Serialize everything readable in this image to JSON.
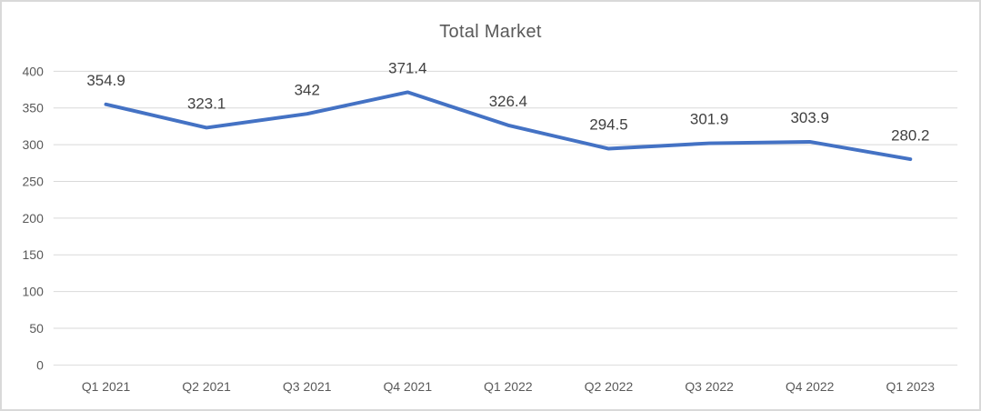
{
  "window": {
    "background_color": "#FFFFFF",
    "border_color": "#D9D9D9"
  },
  "chart_data": {
    "type": "line",
    "title": "Total Market",
    "xlabel": "",
    "ylabel": "",
    "categories": [
      "Q1 2021",
      "Q2 2021",
      "Q3 2021",
      "Q4 2021",
      "Q1 2022",
      "Q2 2022",
      "Q3 2022",
      "Q4 2022",
      "Q1 2023"
    ],
    "series": [
      {
        "name": "Total Market",
        "values": [
          354.9,
          323.1,
          342,
          371.4,
          326.4,
          294.5,
          301.9,
          303.9,
          280.2
        ],
        "labels": [
          "354.9",
          "323.1",
          "342",
          "371.4",
          "326.4",
          "294.5",
          "301.9",
          "303.9",
          "280.2"
        ],
        "color": "#4472C4"
      }
    ],
    "ylim": [
      0,
      400
    ],
    "yticks": [
      0,
      50,
      100,
      150,
      200,
      250,
      300,
      350,
      400
    ],
    "grid": true,
    "legend": "none",
    "data_labels": "above",
    "style": {
      "gridline_color": "#D9D9D9",
      "axis_label_color": "#595959",
      "data_label_color": "#404040",
      "title_color": "#595959",
      "line_width": 4
    }
  }
}
